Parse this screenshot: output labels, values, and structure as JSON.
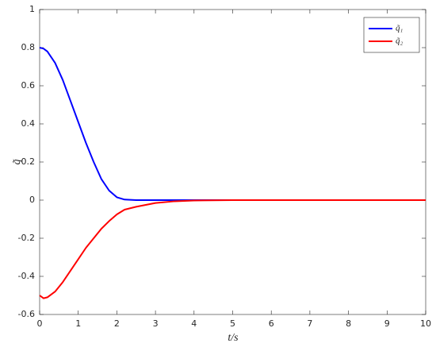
{
  "chart_data": {
    "type": "line",
    "x_label": "t/s",
    "y_label": "q̃",
    "x": [
      0,
      0.1,
      0.2,
      0.4,
      0.6,
      0.8,
      1.0,
      1.2,
      1.4,
      1.6,
      1.8,
      2.0,
      2.2,
      2.5,
      3,
      3.5,
      4,
      5,
      6,
      7,
      8,
      9,
      10
    ],
    "series": [
      {
        "name": "q̃₁",
        "color": "#0000ff",
        "values": [
          0.8,
          0.795,
          0.78,
          0.72,
          0.63,
          0.52,
          0.41,
          0.3,
          0.2,
          0.11,
          0.05,
          0.015,
          0.003,
          0,
          0,
          0,
          0,
          0,
          0,
          0,
          0,
          0,
          0
        ]
      },
      {
        "name": "q̃₂",
        "color": "#ff0000",
        "values": [
          -0.5,
          -0.515,
          -0.51,
          -0.48,
          -0.43,
          -0.37,
          -0.31,
          -0.25,
          -0.2,
          -0.15,
          -0.11,
          -0.075,
          -0.05,
          -0.035,
          -0.015,
          -0.006,
          -0.002,
          0,
          0,
          0,
          0,
          0,
          0
        ]
      }
    ],
    "xlim": [
      0,
      10
    ],
    "xticks": [
      0,
      1,
      2,
      3,
      4,
      5,
      6,
      7,
      8,
      9,
      10
    ],
    "ylim": [
      -0.6,
      1
    ],
    "yticks": [
      -0.6,
      -0.4,
      -0.2,
      0,
      0.2,
      0.4,
      0.6,
      0.8,
      1
    ],
    "grid": false,
    "legend": "upper-right"
  }
}
